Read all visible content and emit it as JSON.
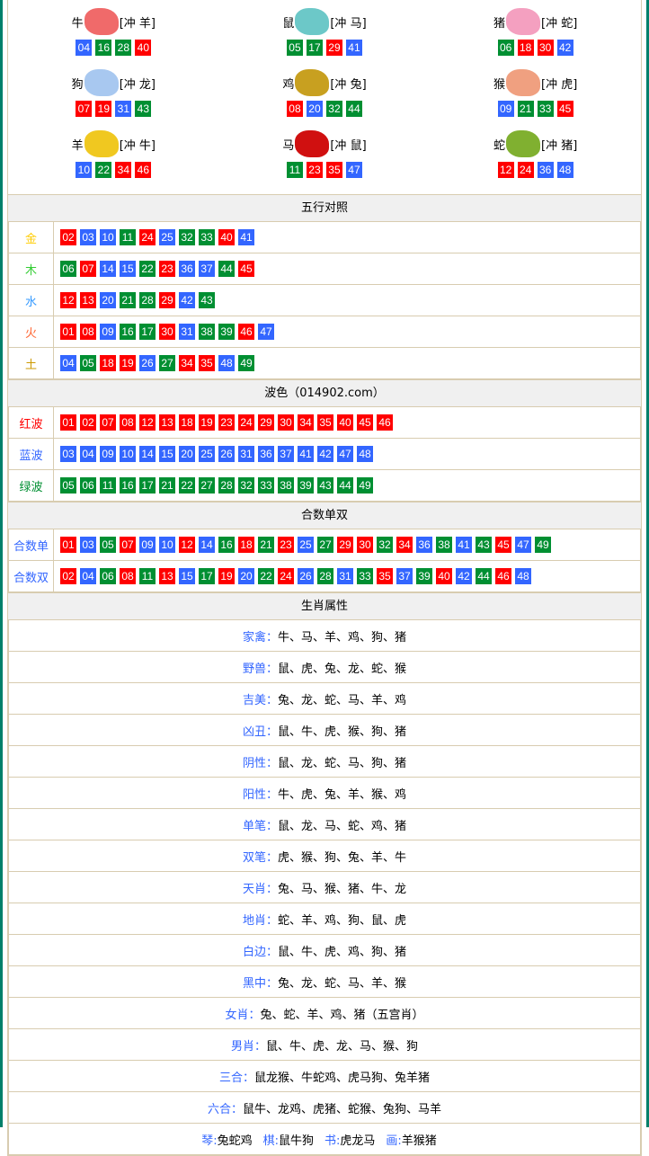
{
  "zodiac": [
    {
      "name": "牛",
      "clash": "[冲 羊]",
      "img": "#f06a6a",
      "nums": [
        "04",
        "16",
        "28",
        "40"
      ]
    },
    {
      "name": "鼠",
      "clash": "[冲 马]",
      "img": "#6cc8c8",
      "nums": [
        "05",
        "17",
        "29",
        "41"
      ]
    },
    {
      "name": "猪",
      "clash": "[冲 蛇]",
      "img": "#f4a0c0",
      "nums": [
        "06",
        "18",
        "30",
        "42"
      ]
    },
    {
      "name": "狗",
      "clash": "[冲 龙]",
      "img": "#a8c8f0",
      "nums": [
        "07",
        "19",
        "31",
        "43"
      ]
    },
    {
      "name": "鸡",
      "clash": "[冲 兔]",
      "img": "#c8a020",
      "nums": [
        "08",
        "20",
        "32",
        "44"
      ]
    },
    {
      "name": "猴",
      "clash": "[冲 虎]",
      "img": "#f0a080",
      "nums": [
        "09",
        "21",
        "33",
        "45"
      ]
    },
    {
      "name": "羊",
      "clash": "[冲 牛]",
      "img": "#f0c820",
      "nums": [
        "10",
        "22",
        "34",
        "46"
      ]
    },
    {
      "name": "马",
      "clash": "[冲 鼠]",
      "img": "#d01010",
      "nums": [
        "11",
        "23",
        "35",
        "47"
      ]
    },
    {
      "name": "蛇",
      "clash": "[冲 猪]",
      "img": "#80b030",
      "nums": [
        "12",
        "24",
        "36",
        "48"
      ]
    }
  ],
  "wuxing": {
    "title": "五行对照",
    "rows": [
      {
        "label": "金",
        "color": "#ffcc00",
        "nums": [
          "02",
          "03",
          "10",
          "11",
          "24",
          "25",
          "32",
          "33",
          "40",
          "41"
        ]
      },
      {
        "label": "木",
        "color": "#33cc33",
        "nums": [
          "06",
          "07",
          "14",
          "15",
          "22",
          "23",
          "36",
          "37",
          "44",
          "45"
        ]
      },
      {
        "label": "水",
        "color": "#3399ff",
        "nums": [
          "12",
          "13",
          "20",
          "21",
          "28",
          "29",
          "42",
          "43"
        ]
      },
      {
        "label": "火",
        "color": "#ff6633",
        "nums": [
          "01",
          "08",
          "09",
          "16",
          "17",
          "30",
          "31",
          "38",
          "39",
          "46",
          "47"
        ]
      },
      {
        "label": "土",
        "color": "#cc9900",
        "nums": [
          "04",
          "05",
          "18",
          "19",
          "26",
          "27",
          "34",
          "35",
          "48",
          "49"
        ]
      }
    ]
  },
  "wave": {
    "title": "波色（014902.com）",
    "rows": [
      {
        "label": "红波",
        "color": "#ff0000",
        "nums": [
          "01",
          "02",
          "07",
          "08",
          "12",
          "13",
          "18",
          "19",
          "23",
          "24",
          "29",
          "30",
          "34",
          "35",
          "40",
          "45",
          "46"
        ]
      },
      {
        "label": "蓝波",
        "color": "#3366ff",
        "nums": [
          "03",
          "04",
          "09",
          "10",
          "14",
          "15",
          "20",
          "25",
          "26",
          "31",
          "36",
          "37",
          "41",
          "42",
          "47",
          "48"
        ]
      },
      {
        "label": "绿波",
        "color": "#008f32",
        "nums": [
          "05",
          "06",
          "11",
          "16",
          "17",
          "21",
          "22",
          "27",
          "28",
          "32",
          "33",
          "38",
          "39",
          "43",
          "44",
          "49"
        ]
      }
    ]
  },
  "heshu": {
    "title": "合数单双",
    "rows": [
      {
        "label": "合数单",
        "color": "#3366ff",
        "nums": [
          "01",
          "03",
          "05",
          "07",
          "09",
          "10",
          "12",
          "14",
          "16",
          "18",
          "21",
          "23",
          "25",
          "27",
          "29",
          "30",
          "32",
          "34",
          "36",
          "38",
          "41",
          "43",
          "45",
          "47",
          "49"
        ]
      },
      {
        "label": "合数双",
        "color": "#3366ff",
        "nums": [
          "02",
          "04",
          "06",
          "08",
          "11",
          "13",
          "15",
          "17",
          "19",
          "20",
          "22",
          "24",
          "26",
          "28",
          "31",
          "33",
          "35",
          "37",
          "39",
          "40",
          "42",
          "44",
          "46",
          "48"
        ]
      }
    ]
  },
  "attrs": {
    "title": "生肖属性",
    "rows": [
      {
        "k": "家禽：",
        "v": "牛、马、羊、鸡、狗、猪"
      },
      {
        "k": "野兽：",
        "v": "鼠、虎、兔、龙、蛇、猴"
      },
      {
        "k": "吉美：",
        "v": "兔、龙、蛇、马、羊、鸡"
      },
      {
        "k": "凶丑：",
        "v": "鼠、牛、虎、猴、狗、猪"
      },
      {
        "k": "阴性：",
        "v": "鼠、龙、蛇、马、狗、猪"
      },
      {
        "k": "阳性：",
        "v": "牛、虎、兔、羊、猴、鸡"
      },
      {
        "k": "单笔：",
        "v": "鼠、龙、马、蛇、鸡、猪"
      },
      {
        "k": "双笔：",
        "v": "虎、猴、狗、兔、羊、牛"
      },
      {
        "k": "天肖：",
        "v": "兔、马、猴、猪、牛、龙"
      },
      {
        "k": "地肖：",
        "v": "蛇、羊、鸡、狗、鼠、虎"
      },
      {
        "k": "白边：",
        "v": "鼠、牛、虎、鸡、狗、猪"
      },
      {
        "k": "黑中：",
        "v": "兔、龙、蛇、马、羊、猴"
      },
      {
        "k": "女肖：",
        "v": "兔、蛇、羊、鸡、猪（五宫肖）"
      },
      {
        "k": "男肖：",
        "v": "鼠、牛、虎、龙、马、猴、狗"
      },
      {
        "k": "三合：",
        "v": "鼠龙猴、牛蛇鸡、虎马狗、兔羊猪"
      },
      {
        "k": "六合：",
        "v": "鼠牛、龙鸡、虎猪、蛇猴、兔狗、马羊"
      }
    ],
    "last": [
      {
        "k": "琴:",
        "v": "兔蛇鸡"
      },
      {
        "k": "棋:",
        "v": "鼠牛狗"
      },
      {
        "k": "书:",
        "v": "虎龙马"
      },
      {
        "k": "画:",
        "v": "羊猴猪"
      }
    ]
  }
}
